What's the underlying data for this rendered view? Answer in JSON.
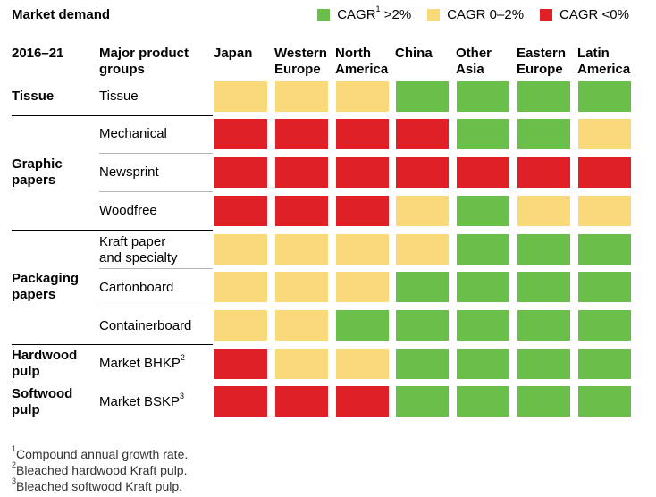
{
  "title": "Market demand",
  "legend": [
    {
      "label": "CAGR",
      "sup": "1",
      "after": " >2%",
      "color": "#6abf4b"
    },
    {
      "label": "CAGR 0–2%",
      "sup": "",
      "after": "",
      "color": "#fad97a"
    },
    {
      "label": "CAGR <0%",
      "sup": "",
      "after": "",
      "color": "#e02027"
    }
  ],
  "header": {
    "period": "2016–21",
    "products_line1": "Major product",
    "products_line2": "groups"
  },
  "regions": [
    {
      "l1": "Japan",
      "l2": ""
    },
    {
      "l1": "Western",
      "l2": "Europe"
    },
    {
      "l1": "North",
      "l2": "America"
    },
    {
      "l1": "China",
      "l2": ""
    },
    {
      "l1": "Other",
      "l2": "Asia"
    },
    {
      "l1": "Eastern",
      "l2": "Europe"
    },
    {
      "l1": "Latin",
      "l2": "America"
    }
  ],
  "groups": [
    {
      "l1": "Tissue",
      "l2": ""
    },
    {
      "l1": "Graphic",
      "l2": "papers"
    },
    {
      "l1": "Packaging",
      "l2": "papers"
    },
    {
      "l1": "Hardwood",
      "l2": "pulp"
    },
    {
      "l1": "Softwood",
      "l2": "pulp"
    }
  ],
  "products": [
    {
      "l1": "Tissue",
      "l2": "",
      "sup": ""
    },
    {
      "l1": "Mechanical",
      "l2": "",
      "sup": ""
    },
    {
      "l1": "Newsprint",
      "l2": "",
      "sup": ""
    },
    {
      "l1": "Woodfree",
      "l2": "",
      "sup": ""
    },
    {
      "l1": "Kraft paper",
      "l2": "and specialty",
      "sup": ""
    },
    {
      "l1": "Cartonboard",
      "l2": "",
      "sup": ""
    },
    {
      "l1": "Containerboard",
      "l2": "",
      "sup": ""
    },
    {
      "l1": "Market BHKP",
      "l2": "",
      "sup": "2"
    },
    {
      "l1": "Market BSKP",
      "l2": "",
      "sup": "3"
    }
  ],
  "footnotes": [
    {
      "sup": "1",
      "text": "Compound annual growth rate."
    },
    {
      "sup": "2",
      "text": "Bleached hardwood Kraft pulp."
    },
    {
      "sup": "3",
      "text": "Bleached softwood Kraft pulp."
    }
  ],
  "colors": {
    "green": "#6abf4b",
    "yellow": "#fad97a",
    "red": "#e02027"
  },
  "chart_data": {
    "type": "heatmap",
    "title": "Market demand",
    "x_categories": [
      "Japan",
      "Western Europe",
      "North America",
      "China",
      "Other Asia",
      "Eastern Europe",
      "Latin America"
    ],
    "y_categories": [
      "Tissue",
      "Mechanical",
      "Newsprint",
      "Woodfree",
      "Kraft paper and specialty",
      "Cartonboard",
      "Containerboard",
      "Market BHKP",
      "Market BSKP"
    ],
    "legend": {
      "green": "CAGR >2%",
      "yellow": "CAGR 0–2%",
      "red": "CAGR <0%"
    },
    "values": [
      [
        "yellow",
        "yellow",
        "yellow",
        "green",
        "green",
        "green",
        "green"
      ],
      [
        "red",
        "red",
        "red",
        "red",
        "green",
        "green",
        "yellow"
      ],
      [
        "red",
        "red",
        "red",
        "red",
        "red",
        "red",
        "red"
      ],
      [
        "red",
        "red",
        "red",
        "yellow",
        "green",
        "yellow",
        "yellow"
      ],
      [
        "yellow",
        "yellow",
        "yellow",
        "yellow",
        "green",
        "green",
        "green"
      ],
      [
        "yellow",
        "yellow",
        "yellow",
        "green",
        "green",
        "green",
        "green"
      ],
      [
        "yellow",
        "yellow",
        "green",
        "green",
        "green",
        "green",
        "green"
      ],
      [
        "red",
        "yellow",
        "yellow",
        "green",
        "green",
        "green",
        "green"
      ],
      [
        "red",
        "red",
        "red",
        "green",
        "green",
        "green",
        "green"
      ]
    ]
  }
}
